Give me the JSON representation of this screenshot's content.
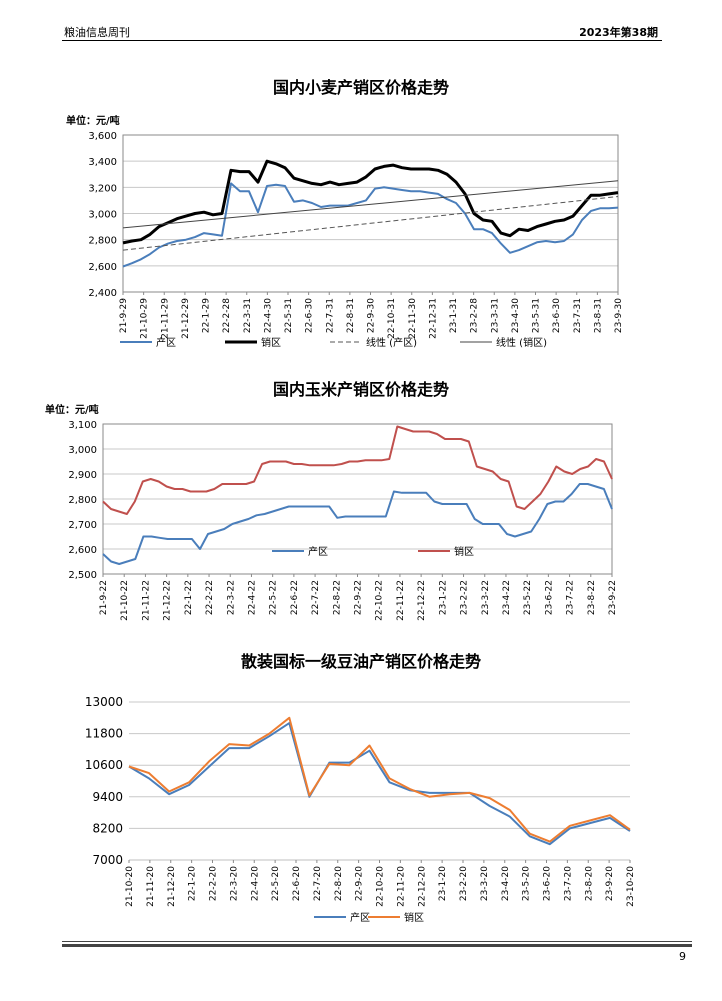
{
  "header": {
    "left": "粮油信息周刊",
    "right": "2023年第38期"
  },
  "footer": {
    "page_number": "9"
  },
  "chart_data": [
    {
      "type": "line",
      "title": "国内小麦产销区价格走势",
      "unit_label": "单位：元/吨",
      "ylim": [
        2400,
        3600
      ],
      "yticks": [
        "2,400",
        "2,600",
        "2,800",
        "3,000",
        "3,200",
        "3,400",
        "3,600"
      ],
      "grid": true,
      "legend_position": "bottom",
      "x_tick_labels": [
        "21-9-29",
        "21-10-29",
        "21-11-29",
        "21-12-29",
        "22-1-29",
        "22-2-28",
        "22-3-31",
        "22-4-30",
        "22-5-31",
        "22-6-30",
        "22-7-31",
        "22-8-31",
        "22-9-30",
        "22-10-31",
        "22-11-30",
        "22-12-31",
        "23-1-31",
        "23-2-28",
        "23-3-31",
        "23-4-30",
        "23-5-31",
        "23-6-30",
        "23-7-31",
        "23-8-31",
        "23-9-30"
      ],
      "series": [
        {
          "name": "产区",
          "style": "solid",
          "color": "#4a7ebb",
          "width": 2,
          "values": [
            2595,
            2620,
            2650,
            2690,
            2740,
            2770,
            2790,
            2800,
            2820,
            2850,
            2840,
            2830,
            3230,
            3170,
            3170,
            3010,
            3210,
            3220,
            3210,
            3090,
            3100,
            3080,
            3050,
            3060,
            3060,
            3060,
            3080,
            3100,
            3190,
            3200,
            3190,
            3180,
            3170,
            3170,
            3160,
            3150,
            3110,
            3080,
            3000,
            2880,
            2880,
            2850,
            2770,
            2700,
            2720,
            2750,
            2780,
            2790,
            2780,
            2790,
            2840,
            2950,
            3020,
            3040,
            3040,
            3045
          ]
        },
        {
          "name": "销区",
          "style": "solid",
          "color": "#000000",
          "width": 3,
          "values": [
            2775,
            2790,
            2800,
            2840,
            2900,
            2930,
            2960,
            2980,
            3000,
            3010,
            2990,
            3000,
            3330,
            3320,
            3320,
            3240,
            3400,
            3380,
            3350,
            3270,
            3250,
            3230,
            3220,
            3240,
            3220,
            3230,
            3240,
            3280,
            3340,
            3360,
            3370,
            3350,
            3340,
            3340,
            3340,
            3330,
            3300,
            3240,
            3150,
            3000,
            2950,
            2940,
            2850,
            2830,
            2880,
            2870,
            2900,
            2920,
            2940,
            2950,
            2980,
            3060,
            3140,
            3140,
            3150,
            3160
          ]
        },
        {
          "name": "线性 (产区)",
          "style": "dashed",
          "color": "#555555",
          "width": 1,
          "trend": [
            2720,
            3130
          ]
        },
        {
          "name": "线性 (销区)",
          "style": "solid",
          "color": "#444444",
          "width": 1,
          "trend": [
            2890,
            3250
          ]
        }
      ]
    },
    {
      "type": "line",
      "title": "国内玉米产销区价格走势",
      "unit_label": "单位：元/吨",
      "ylim": [
        2500,
        3100
      ],
      "yticks": [
        "2,500",
        "2,600",
        "2,700",
        "2,800",
        "2,900",
        "3,000",
        "3,100"
      ],
      "grid": true,
      "legend_position": "bottom",
      "x_tick_labels": [
        "21-9-22",
        "21-10-22",
        "21-11-22",
        "21-12-22",
        "22-1-22",
        "22-2-22",
        "22-3-22",
        "22-4-22",
        "22-5-22",
        "22-6-22",
        "22-7-22",
        "22-8-22",
        "22-9-22",
        "22-10-22",
        "22-11-22",
        "22-12-22",
        "23-1-22",
        "23-2-22",
        "23-3-22",
        "23-4-22",
        "23-5-22",
        "23-6-22",
        "23-7-22",
        "23-8-22",
        "23-9-22"
      ],
      "series": [
        {
          "name": "产区",
          "color": "#4a7ebb",
          "values": [
            2580,
            2550,
            2540,
            2550,
            2560,
            2650,
            2650,
            2645,
            2640,
            2640,
            2640,
            2640,
            2600,
            2660,
            2670,
            2680,
            2700,
            2710,
            2720,
            2735,
            2740,
            2750,
            2760,
            2770,
            2770,
            2770,
            2770,
            2770,
            2770,
            2725,
            2730,
            2730,
            2730,
            2730,
            2730,
            2730,
            2830,
            2825,
            2825,
            2825,
            2825,
            2790,
            2780,
            2780,
            2780,
            2780,
            2720,
            2700,
            2700,
            2700,
            2660,
            2650,
            2660,
            2670,
            2720,
            2780,
            2790,
            2790,
            2820,
            2860,
            2860,
            2850,
            2840,
            2760
          ]
        },
        {
          "name": "销区",
          "color": "#c0504d",
          "values": [
            2790,
            2760,
            2750,
            2740,
            2790,
            2870,
            2880,
            2870,
            2850,
            2840,
            2840,
            2830,
            2830,
            2830,
            2840,
            2860,
            2860,
            2860,
            2860,
            2870,
            2940,
            2950,
            2950,
            2950,
            2940,
            2940,
            2935,
            2935,
            2935,
            2935,
            2940,
            2950,
            2950,
            2955,
            2955,
            2955,
            2960,
            3090,
            3080,
            3070,
            3070,
            3070,
            3060,
            3040,
            3040,
            3040,
            3030,
            2930,
            2920,
            2910,
            2880,
            2870,
            2770,
            2760,
            2790,
            2820,
            2870,
            2930,
            2910,
            2900,
            2920,
            2930,
            2960,
            2950,
            2880
          ]
        }
      ]
    },
    {
      "type": "line",
      "title": "散装国标一级豆油产销区价格走势",
      "ylim": [
        7000,
        13000
      ],
      "yticks": [
        "7000",
        "8200",
        "9400",
        "10600",
        "11800",
        "13000"
      ],
      "grid": true,
      "legend_position": "bottom",
      "x_tick_labels": [
        "21-10-20",
        "21-11-20",
        "21-12-20",
        "22-1-20",
        "22-2-20",
        "22-3-20",
        "22-4-20",
        "22-5-20",
        "22-6-20",
        "22-7-20",
        "22-8-20",
        "22-9-20",
        "22-10-20",
        "22-11-20",
        "22-12-20",
        "23-1-20",
        "23-2-20",
        "23-3-20",
        "23-4-20",
        "23-5-20",
        "23-6-20",
        "23-7-20",
        "23-8-20",
        "23-9-20",
        "23-10-20"
      ],
      "series": [
        {
          "name": "产区",
          "color": "#4a7ebb",
          "values": [
            10550,
            10100,
            9500,
            9850,
            10550,
            11250,
            11250,
            11700,
            12200,
            9400,
            10700,
            10700,
            11150,
            9950,
            9650,
            9550,
            9550,
            9550,
            9050,
            8650,
            7900,
            7600,
            8200,
            8400,
            8600,
            8100
          ]
        },
        {
          "name": "销区",
          "color": "#ed7d31",
          "values": [
            10550,
            10300,
            9600,
            9950,
            10750,
            11400,
            11350,
            11800,
            12400,
            9450,
            10650,
            10600,
            11350,
            10100,
            9700,
            9400,
            9500,
            9550,
            9350,
            8900,
            8000,
            7700,
            8300,
            8500,
            8700,
            8150
          ]
        }
      ]
    }
  ]
}
